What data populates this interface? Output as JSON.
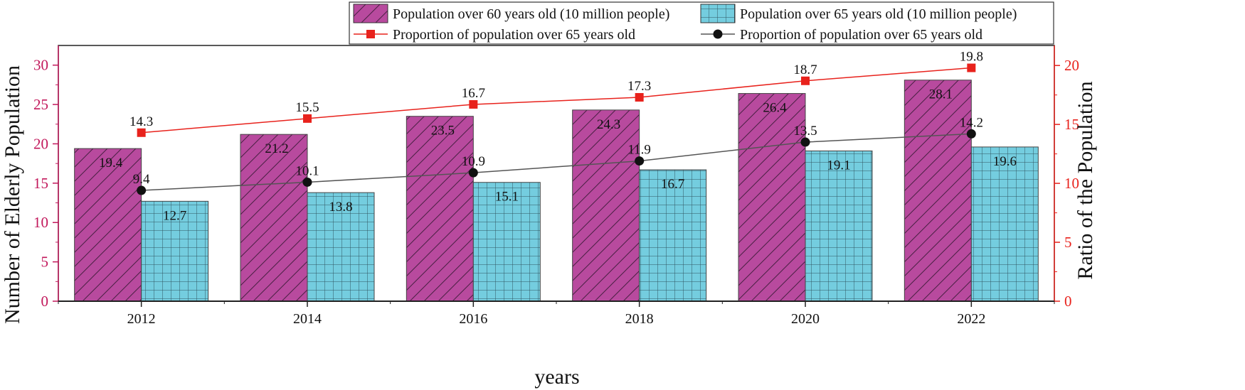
{
  "chart_data": {
    "type": "bar",
    "categories": [
      "2012",
      "2014",
      "2016",
      "2018",
      "2020",
      "2022"
    ],
    "xlabel": "years",
    "ylabel_left": "Number of Elderly Population",
    "ylabel_right": "Ratio of the Population",
    "ylim_left": [
      0,
      32.5
    ],
    "ylim_right": [
      0,
      21.7
    ],
    "yticks_left": [
      0,
      5,
      10,
      15,
      20,
      25,
      30
    ],
    "yticks_right": [
      0,
      5,
      10,
      15,
      20
    ],
    "grid": false,
    "legend_position": "top-right",
    "bar_series": [
      {
        "name": "Population over 60 years old (10 million people)",
        "values": [
          19.4,
          21.2,
          23.5,
          24.3,
          26.4,
          28.1
        ],
        "value_labels": [
          "19.4",
          "21.2",
          "23.5",
          "24.3",
          "26.4",
          "28.1"
        ],
        "color": "#b84a9e",
        "pattern": "diagonal-hatch",
        "axis": "left"
      },
      {
        "name": "Population over 65 years old (10 million people)",
        "values": [
          12.7,
          13.8,
          15.1,
          16.7,
          19.1,
          19.6
        ],
        "value_labels": [
          "12.7",
          "13.8",
          "15.1",
          "16.7",
          "19.1",
          "19.6"
        ],
        "color": "#74cddf",
        "pattern": "grid",
        "axis": "left"
      }
    ],
    "line_series": [
      {
        "name": "Proportion of population over 65 years old",
        "values": [
          14.3,
          15.5,
          16.7,
          17.3,
          18.7,
          19.8
        ],
        "value_labels": [
          "14.3",
          "15.5",
          "16.7",
          "17.3",
          "18.7",
          "19.8"
        ],
        "color": "#e8221c",
        "marker": "square",
        "axis": "right"
      },
      {
        "name": "Proportion of population over 65 years old",
        "values": [
          9.4,
          10.1,
          10.9,
          11.9,
          13.5,
          14.2
        ],
        "value_labels": [
          "9.4",
          "10.1",
          "10.9",
          "11.9",
          "13.5",
          "14.2"
        ],
        "color": "#111111",
        "line_color": "#555555",
        "marker": "circle",
        "axis": "right"
      }
    ],
    "left_axis_color": "#c2185b",
    "right_axis_color": "#e8221c"
  }
}
